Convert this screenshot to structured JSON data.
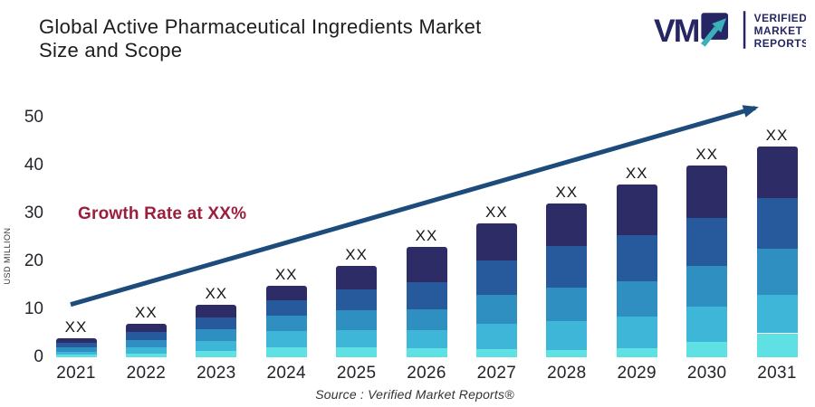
{
  "header": {
    "title_lines": [
      "Global Active Pharmaceutical Ingredients Market",
      "Size and Scope"
    ],
    "logo": {
      "acronym": "VM",
      "lines": [
        "VERIFIED",
        "MARKET",
        "REPORTS"
      ],
      "navy": "#252663",
      "teal": "#3cb1ba"
    }
  },
  "annotations": {
    "growth_label": "Growth Rate at XX%",
    "source": "Source :  Verified Market Reports®"
  },
  "chart_data": {
    "type": "bar",
    "stacked": true,
    "title": "Global Active Pharmaceutical Ingredients Market Size and Scope",
    "categories": [
      "2021",
      "2022",
      "2023",
      "2024",
      "2025",
      "2026",
      "2027",
      "2028",
      "2029",
      "2030",
      "2031"
    ],
    "totals": [
      4,
      7,
      11,
      15,
      19,
      23,
      28,
      32,
      36,
      40,
      44
    ],
    "bar_value_label": "XX",
    "series": [
      {
        "name": "segment-5",
        "color": "#5fe0e3",
        "values": [
          0.5,
          0.8,
          1.4,
          2.0,
          2.0,
          1.9,
          1.7,
          1.5,
          1.8,
          3.2,
          5.0
        ]
      },
      {
        "name": "segment-4",
        "color": "#3eb6d7",
        "values": [
          0.7,
          1.3,
          2.0,
          3.4,
          3.6,
          3.8,
          5.3,
          6.1,
          6.6,
          7.3,
          8.0
        ]
      },
      {
        "name": "segment-3",
        "color": "#2e8fc0",
        "values": [
          0.9,
          1.5,
          2.4,
          3.2,
          4.2,
          4.3,
          6.0,
          7.0,
          7.5,
          8.5,
          9.7
        ]
      },
      {
        "name": "segment-2",
        "color": "#265a9c",
        "values": [
          0.9,
          1.6,
          2.5,
          3.2,
          4.3,
          5.7,
          7.2,
          8.6,
          9.6,
          10.0,
          10.5
        ]
      },
      {
        "name": "segment-1",
        "color": "#2d2c66",
        "values": [
          1.0,
          1.8,
          2.7,
          3.2,
          4.9,
          7.3,
          7.8,
          8.8,
          10.5,
          11.0,
          10.8
        ]
      }
    ],
    "xlabel": "",
    "ylabel": "USD MILLION",
    "yticks": [
      0,
      10,
      20,
      30,
      40,
      50
    ],
    "ylim": [
      0,
      50
    ],
    "grid": false,
    "legend": false,
    "trend_arrow": {
      "start_value": 11,
      "end_value": 52,
      "color": "#1d4b7c"
    },
    "growth_color": "#9c1e3d"
  }
}
